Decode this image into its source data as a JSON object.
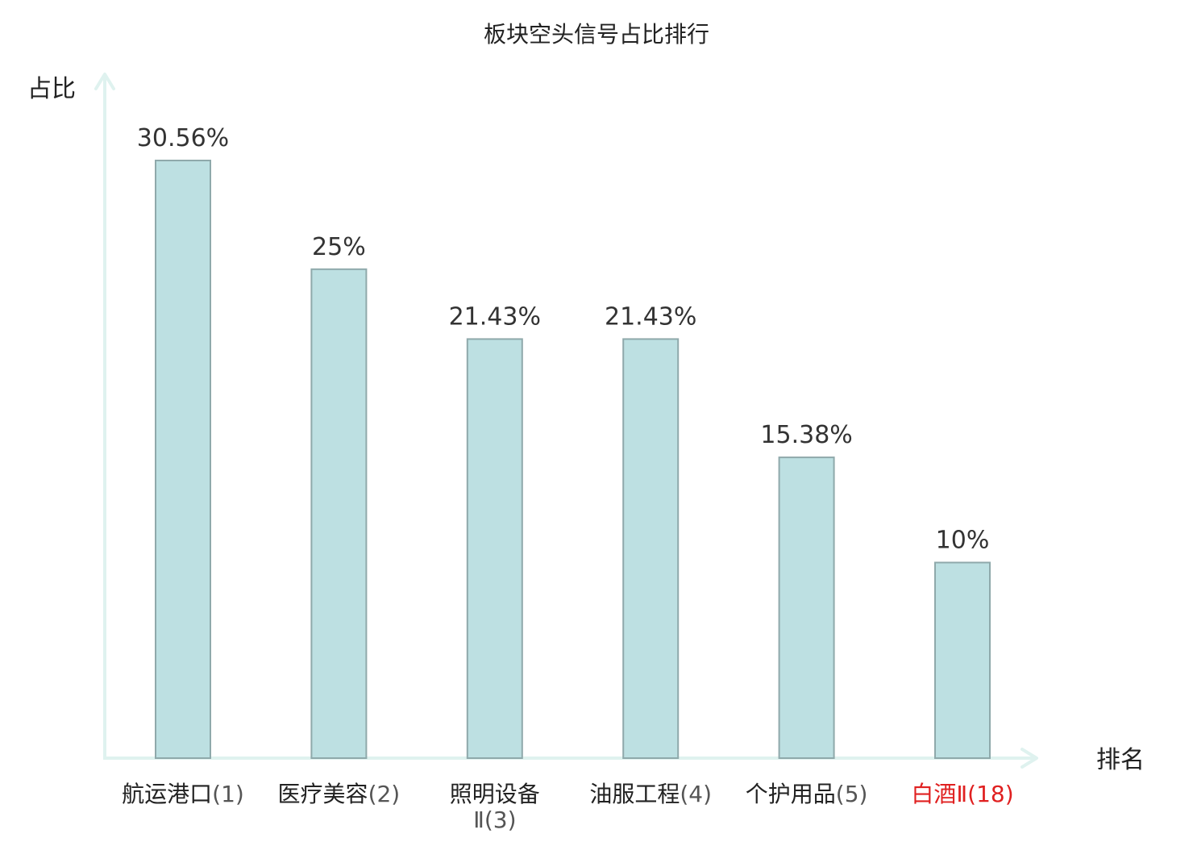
{
  "chart_data": {
    "type": "bar",
    "title": "板块空头信号占比排行",
    "ylabel": "占比",
    "xlabel": "排名",
    "categories": [
      {
        "name": "航运港口",
        "rank": "(1)",
        "value": 30.56,
        "value_label": "30.56%"
      },
      {
        "name": "医疗美容",
        "rank": "(2)",
        "value": 25,
        "value_label": "25%"
      },
      {
        "name": "照明设备Ⅱ",
        "rank": "(3)",
        "value": 21.43,
        "value_label": "21.43%"
      },
      {
        "name": "油服工程",
        "rank": "(4)",
        "value": 21.43,
        "value_label": "21.43%"
      },
      {
        "name": "个护用品",
        "rank": "(5)",
        "value": 15.38,
        "value_label": "15.38%"
      },
      {
        "name": "白酒Ⅱ",
        "rank": "(18)",
        "value": 10,
        "value_label": "10%",
        "highlight": true
      }
    ],
    "ylim": [
      0,
      30.56
    ],
    "grid": false,
    "legend": "none"
  },
  "colors": {
    "bar_fill": "#bde0e2",
    "bar_stroke": "#8fa9ab",
    "axis": "#dff2ef",
    "text": "#222222",
    "rank_text": "#555555",
    "value_text": "#333333",
    "highlight": "#e02020"
  }
}
